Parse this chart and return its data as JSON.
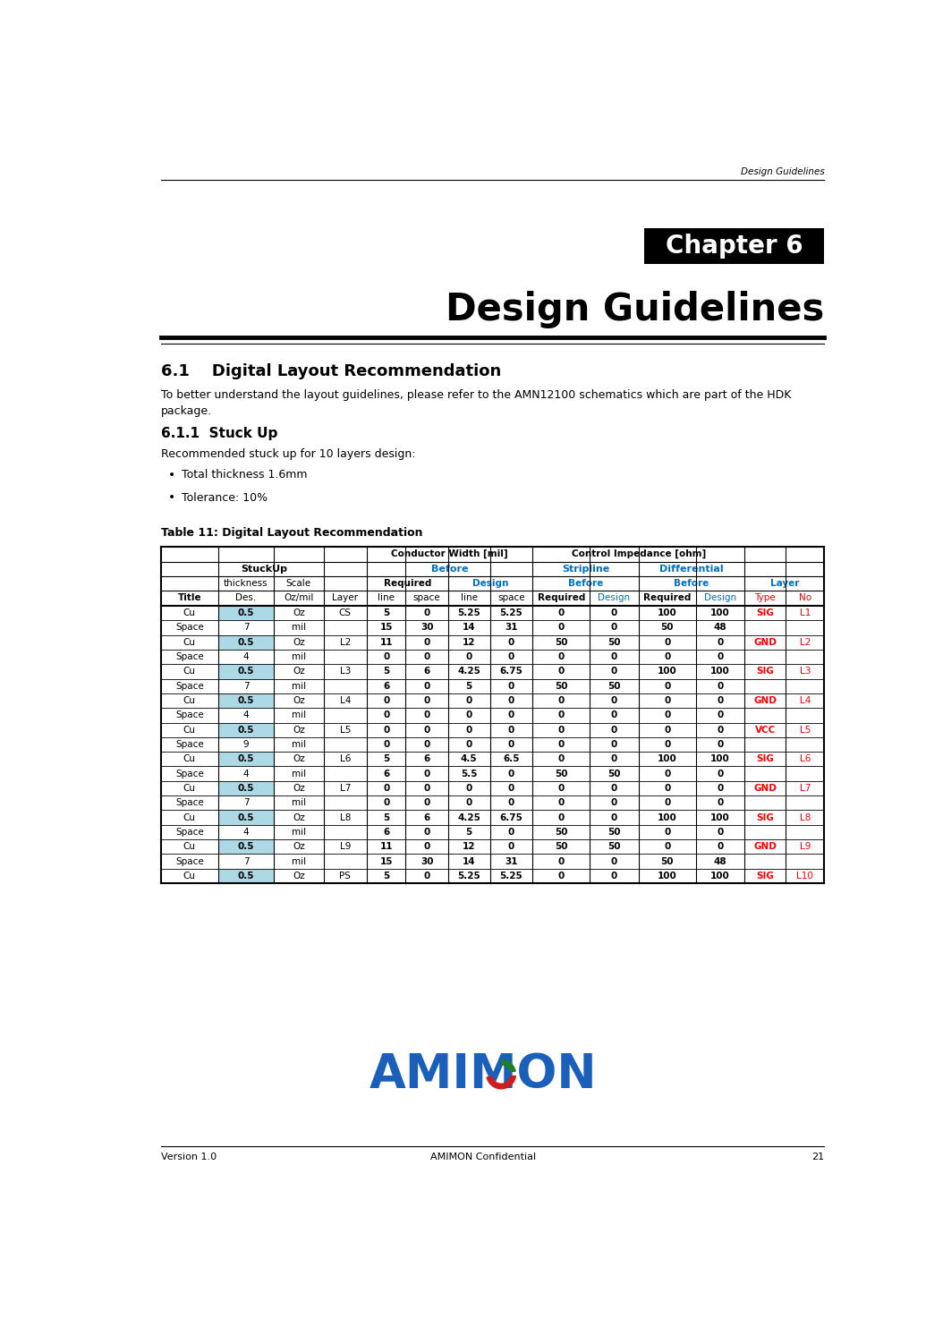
{
  "page_width": 10.54,
  "page_height": 14.83,
  "bg_color": "#ffffff",
  "header_text": "Design Guidelines",
  "chapter_box_color": "#000000",
  "chapter_text": "Chapter 6",
  "chapter_text_color": "#ffffff",
  "title_text": "Design Guidelines",
  "section_title": "6.1    Digital Layout Recommendation",
  "section_body1": "To better understand the layout guidelines, please refer to the AMN12100 schematics which are part of the HDK",
  "section_body2": "package.",
  "subsection_title": "6.1.1  Stuck Up",
  "subsection_body": "Recommended stuck up for 10 layers design:",
  "bullets": [
    "Total thickness 1.6mm",
    "Tolerance: 10%"
  ],
  "table_title": "Table 11: Digital Layout Recommendation",
  "table_rows": [
    [
      "Cu",
      "0.5",
      "Oz",
      "CS",
      "5",
      "0",
      "5.25",
      "5.25",
      "0",
      "0",
      "100",
      "100",
      "SIG",
      "L1"
    ],
    [
      "Space",
      "7",
      "mil",
      "",
      "15",
      "30",
      "14",
      "31",
      "0",
      "0",
      "50",
      "48",
      "",
      ""
    ],
    [
      "Cu",
      "0.5",
      "Oz",
      "L2",
      "11",
      "0",
      "12",
      "0",
      "50",
      "50",
      "0",
      "0",
      "GND",
      "L2"
    ],
    [
      "Space",
      "4",
      "mil",
      "",
      "0",
      "0",
      "0",
      "0",
      "0",
      "0",
      "0",
      "0",
      "",
      ""
    ],
    [
      "Cu",
      "0.5",
      "Oz",
      "L3",
      "5",
      "6",
      "4.25",
      "6.75",
      "0",
      "0",
      "100",
      "100",
      "SIG",
      "L3"
    ],
    [
      "Space",
      "7",
      "mil",
      "",
      "6",
      "0",
      "5",
      "0",
      "50",
      "50",
      "0",
      "0",
      "",
      ""
    ],
    [
      "Cu",
      "0.5",
      "Oz",
      "L4",
      "0",
      "0",
      "0",
      "0",
      "0",
      "0",
      "0",
      "0",
      "GND",
      "L4"
    ],
    [
      "Space",
      "4",
      "mil",
      "",
      "0",
      "0",
      "0",
      "0",
      "0",
      "0",
      "0",
      "0",
      "",
      ""
    ],
    [
      "Cu",
      "0.5",
      "Oz",
      "L5",
      "0",
      "0",
      "0",
      "0",
      "0",
      "0",
      "0",
      "0",
      "VCC",
      "L5"
    ],
    [
      "Space",
      "9",
      "mil",
      "",
      "0",
      "0",
      "0",
      "0",
      "0",
      "0",
      "0",
      "0",
      "",
      ""
    ],
    [
      "Cu",
      "0.5",
      "Oz",
      "L6",
      "5",
      "6",
      "4.5",
      "6.5",
      "0",
      "0",
      "100",
      "100",
      "SIG",
      "L6"
    ],
    [
      "Space",
      "4",
      "mil",
      "",
      "6",
      "0",
      "5.5",
      "0",
      "50",
      "50",
      "0",
      "0",
      "",
      ""
    ],
    [
      "Cu",
      "0.5",
      "Oz",
      "L7",
      "0",
      "0",
      "0",
      "0",
      "0",
      "0",
      "0",
      "0",
      "GND",
      "L7"
    ],
    [
      "Space",
      "7",
      "mil",
      "",
      "0",
      "0",
      "0",
      "0",
      "0",
      "0",
      "0",
      "0",
      "",
      ""
    ],
    [
      "Cu",
      "0.5",
      "Oz",
      "L8",
      "5",
      "6",
      "4.25",
      "6.75",
      "0",
      "0",
      "100",
      "100",
      "SIG",
      "L8"
    ],
    [
      "Space",
      "4",
      "mil",
      "",
      "6",
      "0",
      "5",
      "0",
      "50",
      "50",
      "0",
      "0",
      "",
      ""
    ],
    [
      "Cu",
      "0.5",
      "Oz",
      "L9",
      "11",
      "0",
      "12",
      "0",
      "50",
      "50",
      "0",
      "0",
      "GND",
      "L9"
    ],
    [
      "Space",
      "7",
      "mil",
      "",
      "15",
      "30",
      "14",
      "31",
      "0",
      "0",
      "50",
      "48",
      "",
      ""
    ],
    [
      "Cu",
      "0.5",
      "Oz",
      "PS",
      "5",
      "0",
      "5.25",
      "5.25",
      "0",
      "0",
      "100",
      "100",
      "SIG",
      "L10"
    ]
  ],
  "blue_color": "#0070c0",
  "red_color": "#ff0000",
  "footer_version": "Version 1.0",
  "footer_confidential": "AMIMON Confidential",
  "footer_page": "21",
  "cyan_bg": "#add8e6"
}
